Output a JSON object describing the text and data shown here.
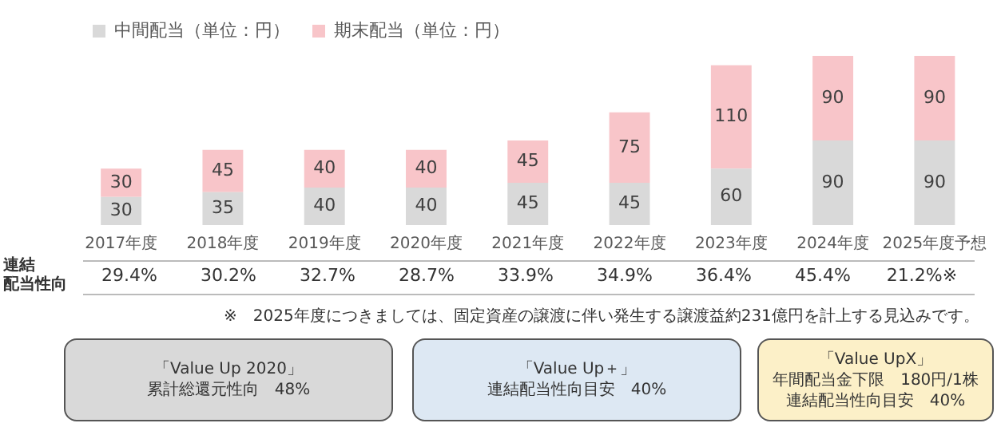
{
  "chart_data": {
    "type": "bar",
    "stacked": true,
    "categories": [
      "2017年度",
      "2018年度",
      "2019年度",
      "2020年度",
      "2021年度",
      "2022年度",
      "2023年度",
      "2024年度",
      "2025年度予想"
    ],
    "series": [
      {
        "name": "中間配当（単位：円）",
        "color": "#d9d9d9",
        "values": [
          30,
          35,
          40,
          40,
          45,
          45,
          60,
          90,
          90
        ]
      },
      {
        "name": "期末配当（単位：円）",
        "color": "#f8c5c9",
        "values": [
          30,
          45,
          40,
          40,
          45,
          75,
          110,
          90,
          90
        ]
      }
    ],
    "data_labels": true,
    "legend": "top left",
    "grid": false,
    "annotations": [
      "連結",
      "配当性向",
      "29.4%",
      "30.2%",
      "32.7%",
      "28.7%",
      "33.9%",
      "34.9%",
      "36.4%",
      "45.4%",
      "21.2%※",
      "※　2025年度につきましては、固定資産の譲渡に伴い発生する譲渡益約231億円を計上する見込みです。",
      "「Value Up 2020」",
      "累計総還元性向　48%",
      "「Value Up＋」",
      "連結配当性向目安　40%",
      "「Value UpX」",
      "年間配当金下限　180円/1株",
      "連結配当性向目安　40%"
    ]
  }
}
